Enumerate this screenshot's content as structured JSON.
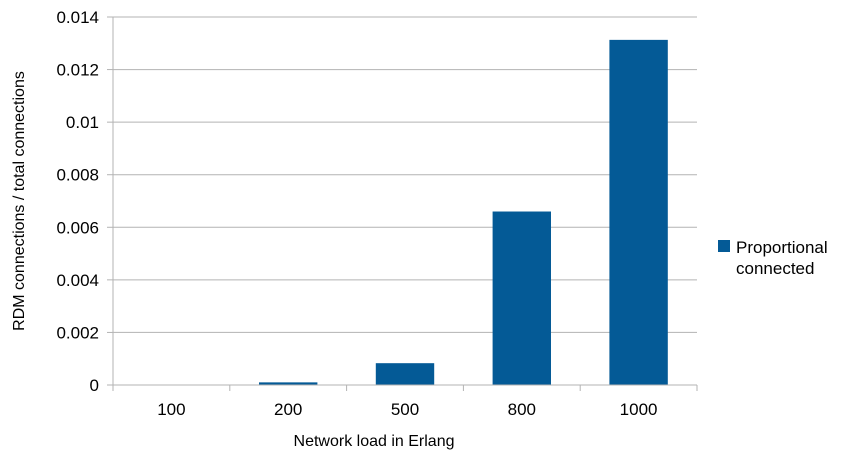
{
  "chart_data": {
    "type": "bar",
    "title": "",
    "xlabel": "Network load in Erlang",
    "ylabel": "RDM connections / total connections",
    "categories": [
      "100",
      "200",
      "500",
      "800",
      "1000"
    ],
    "series": [
      {
        "name": "Proportional connected",
        "values": [
          0,
          0.0001,
          0.00083,
          0.0066,
          0.01313
        ]
      }
    ],
    "ylim": [
      0,
      0.014
    ],
    "yticks": [
      "0",
      "0.002",
      "0.004",
      "0.006",
      "0.008",
      "0.01",
      "0.012",
      "0.014"
    ],
    "grid": true,
    "legend_position": "right",
    "colors": {
      "bar": "#045a96",
      "grid": "#b3b3b3"
    }
  }
}
